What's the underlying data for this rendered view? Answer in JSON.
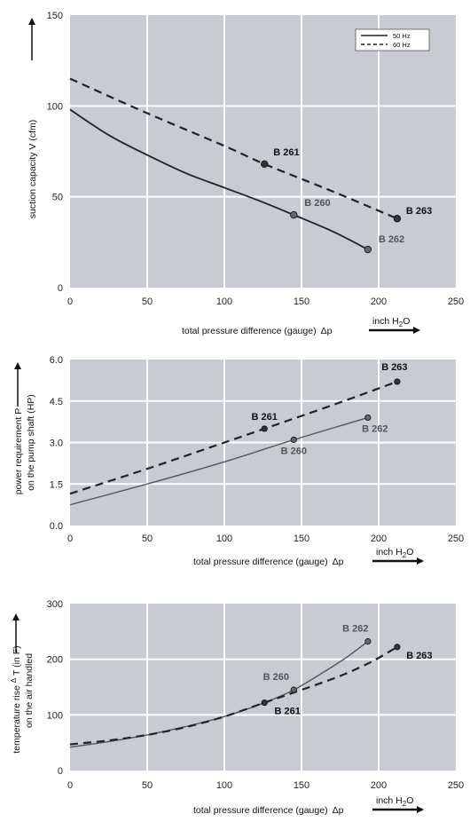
{
  "chart_data": [
    {
      "type": "line",
      "ylabel": "suction capacity V (cfm)",
      "xlabel": "total pressure difference (gauge)",
      "xlabel_symbol": "Δp",
      "unit_label": {
        "pre": "inch H",
        "sub": "2",
        "post": "O"
      },
      "xlim": [
        0,
        250
      ],
      "ylim": [
        0,
        150
      ],
      "xticks": [
        "0",
        "50",
        "100",
        "150",
        "200",
        "250"
      ],
      "yticks": [
        "0",
        "50",
        "100",
        "150"
      ],
      "legend": [
        "50 Hz",
        "60 Hz"
      ],
      "legend_position": "top-right",
      "grid": true,
      "series": [
        {
          "name": "50 Hz",
          "style": "solid",
          "color": "#222222",
          "x": [
            0,
            25,
            50,
            75,
            100,
            125,
            145,
            170,
            193
          ],
          "y": [
            98,
            84,
            73,
            63,
            55,
            47,
            40,
            31,
            21
          ]
        },
        {
          "name": "60 Hz",
          "style": "dashed",
          "color": "#222222",
          "x": [
            0,
            50,
            100,
            126,
            170,
            212
          ],
          "y": [
            115,
            96,
            78,
            68,
            53,
            38
          ]
        }
      ],
      "points": [
        {
          "label": "B 261",
          "x": 126,
          "y": 68,
          "tone": "dark",
          "fill": "#333333"
        },
        {
          "label": "B 260",
          "x": 145,
          "y": 40,
          "tone": "gray",
          "fill": "#666666"
        },
        {
          "label": "B 262",
          "x": 193,
          "y": 21,
          "tone": "gray",
          "fill": "#666666"
        },
        {
          "label": "B 263",
          "x": 212,
          "y": 38,
          "tone": "dark",
          "fill": "#333333"
        }
      ]
    },
    {
      "type": "line",
      "ylabel_line1": "power requirement P",
      "ylabel_line2": "on the pump shaft (HP)",
      "xlabel": "total pressure difference (gauge)",
      "xlabel_symbol": "Δp",
      "unit_label": {
        "pre": "inch H",
        "sub": "2",
        "post": "O"
      },
      "xlim": [
        0,
        250
      ],
      "ylim": [
        0,
        6
      ],
      "xticks": [
        "0",
        "50",
        "100",
        "150",
        "200",
        "250"
      ],
      "yticks": [
        "0.0",
        "1.5",
        "3.0",
        "4.5",
        "6.0"
      ],
      "grid": true,
      "series": [
        {
          "style": "solid",
          "color": "#555555",
          "x": [
            0,
            50,
            100,
            145,
            193
          ],
          "y": [
            0.75,
            1.5,
            2.3,
            3.1,
            3.9
          ]
        },
        {
          "style": "dashed",
          "color": "#222222",
          "x": [
            0,
            50,
            100,
            126,
            170,
            212
          ],
          "y": [
            1.15,
            2.05,
            3.0,
            3.5,
            4.35,
            5.2
          ]
        }
      ],
      "points": [
        {
          "label": "B 261",
          "x": 126,
          "y": 3.5,
          "tone": "dark",
          "fill": "#333333"
        },
        {
          "label": "B 260",
          "x": 145,
          "y": 3.1,
          "tone": "gray",
          "fill": "#666666"
        },
        {
          "label": "B 262",
          "x": 193,
          "y": 3.9,
          "tone": "gray",
          "fill": "#666666"
        },
        {
          "label": "B 263",
          "x": 212,
          "y": 5.2,
          "tone": "dark",
          "fill": "#333333"
        }
      ]
    },
    {
      "type": "line",
      "ylabel_line1": "temperature rise",
      "ylabel_symbol": "ΔT",
      "ylabel_unit": "(in F)",
      "ylabel_line2": "on the air handled",
      "xlabel": "total pressure difference (gauge)",
      "xlabel_symbol": "Δp",
      "unit_label": {
        "pre": "inch H",
        "sub": "2",
        "post": "O"
      },
      "xlim": [
        0,
        250
      ],
      "ylim": [
        0,
        300
      ],
      "xticks": [
        "0",
        "50",
        "100",
        "150",
        "200",
        "250"
      ],
      "yticks": [
        "0",
        "100",
        "200",
        "300"
      ],
      "grid": true,
      "series": [
        {
          "style": "solid",
          "color": "#555555",
          "x": [
            0,
            25,
            50,
            75,
            100,
            126,
            145,
            165,
            180,
            193
          ],
          "y": [
            42,
            52,
            64,
            79,
            97,
            122,
            145,
            178,
            205,
            232
          ]
        },
        {
          "style": "dashed",
          "color": "#222222",
          "x": [
            0,
            25,
            50,
            75,
            100,
            126,
            150,
            175,
            195,
            212
          ],
          "y": [
            47,
            54,
            64,
            78,
            97,
            122,
            145,
            170,
            195,
            222
          ]
        }
      ],
      "points": [
        {
          "label": "B 261",
          "x": 126,
          "y": 122,
          "tone": "dark",
          "fill": "#333333"
        },
        {
          "label": "B 260",
          "x": 145,
          "y": 145,
          "tone": "gray",
          "fill": "#666666"
        },
        {
          "label": "B 262",
          "x": 193,
          "y": 232,
          "tone": "gray",
          "fill": "#666666"
        },
        {
          "label": "B 263",
          "x": 212,
          "y": 222,
          "tone": "dark",
          "fill": "#333333"
        }
      ]
    }
  ]
}
